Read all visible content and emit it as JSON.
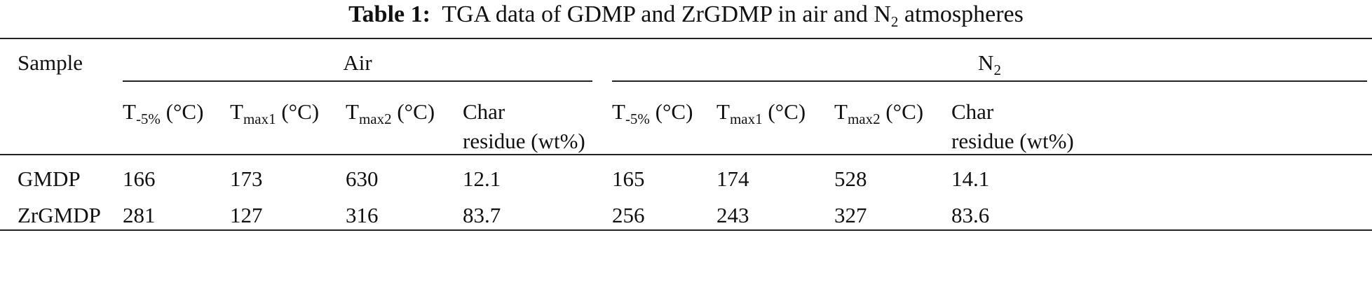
{
  "title": {
    "label": "Table 1:",
    "text": "TGA data of GDMP and ZrGDMP in air and N",
    "subscript": "2",
    "text_end": " atmospheres"
  },
  "table": {
    "row_header": "Sample",
    "groups": [
      {
        "name": "Air"
      },
      {
        "name": "N",
        "subscript": "2"
      }
    ],
    "columns": [
      {
        "symbol": "T",
        "subscript": "-5%",
        "unit": " (°C)"
      },
      {
        "symbol": "T",
        "subscript": "max1",
        "unit": " (°C)"
      },
      {
        "symbol": "T",
        "subscript": "max2",
        "unit": " (°C)"
      },
      {
        "lines": [
          "Char",
          "residue (wt%)"
        ]
      },
      {
        "symbol": "T",
        "subscript": "-5%",
        "unit": " (°C)"
      },
      {
        "symbol": "T",
        "subscript": "max1",
        "unit": " (°C)"
      },
      {
        "symbol": "T",
        "subscript": "max2",
        "unit": " (°C)"
      },
      {
        "lines": [
          "Char",
          "residue (wt%)"
        ]
      }
    ],
    "rows": [
      [
        "GMDP",
        166,
        173,
        630,
        12.1,
        165,
        174,
        528,
        14.1
      ],
      [
        "ZrGMDP",
        281,
        127,
        316,
        83.7,
        256,
        243,
        327,
        83.6
      ]
    ]
  }
}
